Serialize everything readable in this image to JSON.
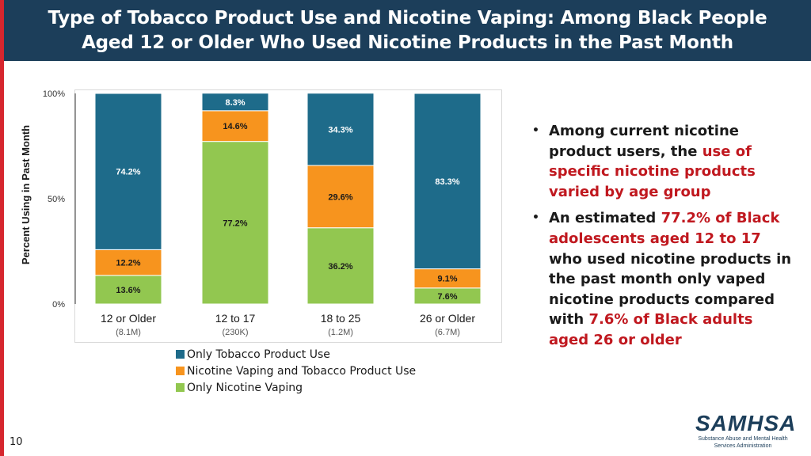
{
  "header": {
    "title_line1": "Type of Tobacco Product Use and Nicotine Vaping: Among Black People",
    "title_line2": "Aged 12 or Older Who Used Nicotine Products in the Past Month"
  },
  "colors": {
    "header_bg": "#1c3e5a",
    "accent_red": "#c0181f",
    "only_tobacco": "#1e6b8a",
    "vaping_and_tobacco": "#f7941e",
    "only_vaping": "#92c750"
  },
  "chart_data": {
    "type": "bar",
    "stacked": true,
    "ylabel": "Percent Using in Past Month",
    "ylim": [
      0,
      100
    ],
    "yticks": [
      "0%",
      "50%",
      "100%"
    ],
    "categories": [
      "12 or Older",
      "12 to 17",
      "18 to 25",
      "26 or Older"
    ],
    "category_sublabels": [
      "(8.1M)",
      "(230K)",
      "(1.2M)",
      "(6.7M)"
    ],
    "series": [
      {
        "name": "Only Nicotine Vaping",
        "color": "#92c750",
        "values": [
          13.6,
          77.2,
          36.2,
          7.6
        ],
        "labels": [
          "13.6%",
          "77.2%",
          "36.2%",
          "7.6%"
        ]
      },
      {
        "name": "Nicotine Vaping and Tobacco Product Use",
        "color": "#f7941e",
        "values": [
          12.2,
          14.6,
          29.6,
          9.1
        ],
        "labels": [
          "12.2%",
          "14.6%",
          "29.6%",
          "9.1%"
        ]
      },
      {
        "name": "Only Tobacco Product Use",
        "color": "#1e6b8a",
        "values": [
          74.2,
          8.3,
          34.3,
          83.3
        ],
        "labels": [
          "74.2%",
          "8.3%",
          "34.3%",
          "83.3%"
        ]
      }
    ],
    "legend": [
      {
        "name": "Only Tobacco Product Use",
        "color": "#1e6b8a"
      },
      {
        "name": "Nicotine Vaping and Tobacco Product Use",
        "color": "#f7941e"
      },
      {
        "name": "Only Nicotine Vaping",
        "color": "#92c750"
      }
    ],
    "legend_position": "bottom"
  },
  "bullets": [
    {
      "parts": [
        {
          "text": "Among current nicotine product users, the ",
          "accent": false
        },
        {
          "text": "use of specific nicotine products varied by age group",
          "accent": true
        }
      ]
    },
    {
      "parts": [
        {
          "text": "An estimated ",
          "accent": false
        },
        {
          "text": "77.2% of Black adolescents aged 12 to 17",
          "accent": true
        },
        {
          "text": " who used nicotine products in the past month only vaped nicotine products compared with ",
          "accent": false
        },
        {
          "text": "7.6% of Black adults aged 26 or older",
          "accent": true
        }
      ]
    }
  ],
  "page_number": "10",
  "logo": {
    "word": "SAMHSA",
    "sub_line1": "Substance Abuse and Mental Health",
    "sub_line2": "Services Administration"
  }
}
